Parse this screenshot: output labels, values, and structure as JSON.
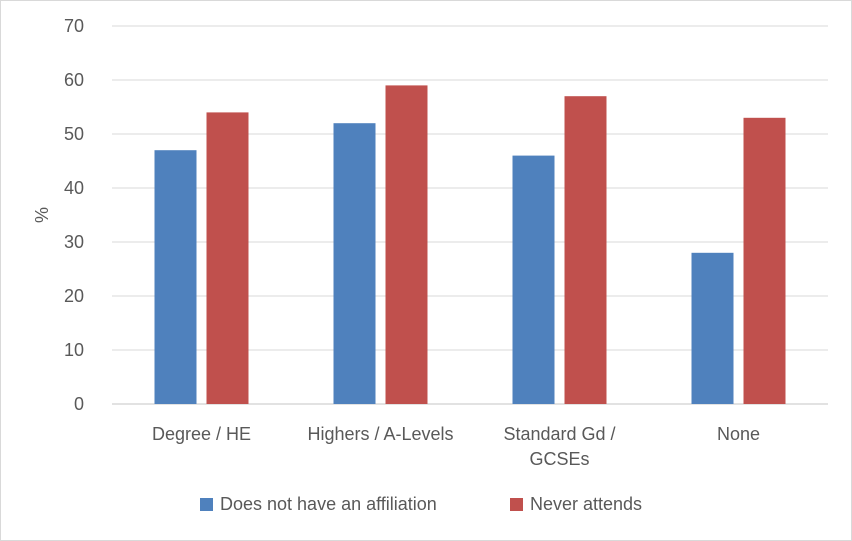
{
  "chart_data": {
    "type": "bar",
    "title": "",
    "xlabel": "",
    "ylabel": "%",
    "ylim": [
      0,
      70
    ],
    "yticks": [
      0,
      10,
      20,
      30,
      40,
      50,
      60,
      70
    ],
    "grid": true,
    "legend_position": "bottom",
    "categories": [
      [
        "Degree / HE"
      ],
      [
        "Highers / A-Levels"
      ],
      [
        "Standard Gd /",
        "GCSEs"
      ],
      [
        "None"
      ]
    ],
    "series": [
      {
        "name": "Does not have an affiliation",
        "color": "#4f81bd",
        "values": [
          47,
          52,
          46,
          28
        ]
      },
      {
        "name": "Never attends",
        "color": "#c0504d",
        "values": [
          54,
          59,
          57,
          53
        ]
      }
    ]
  }
}
